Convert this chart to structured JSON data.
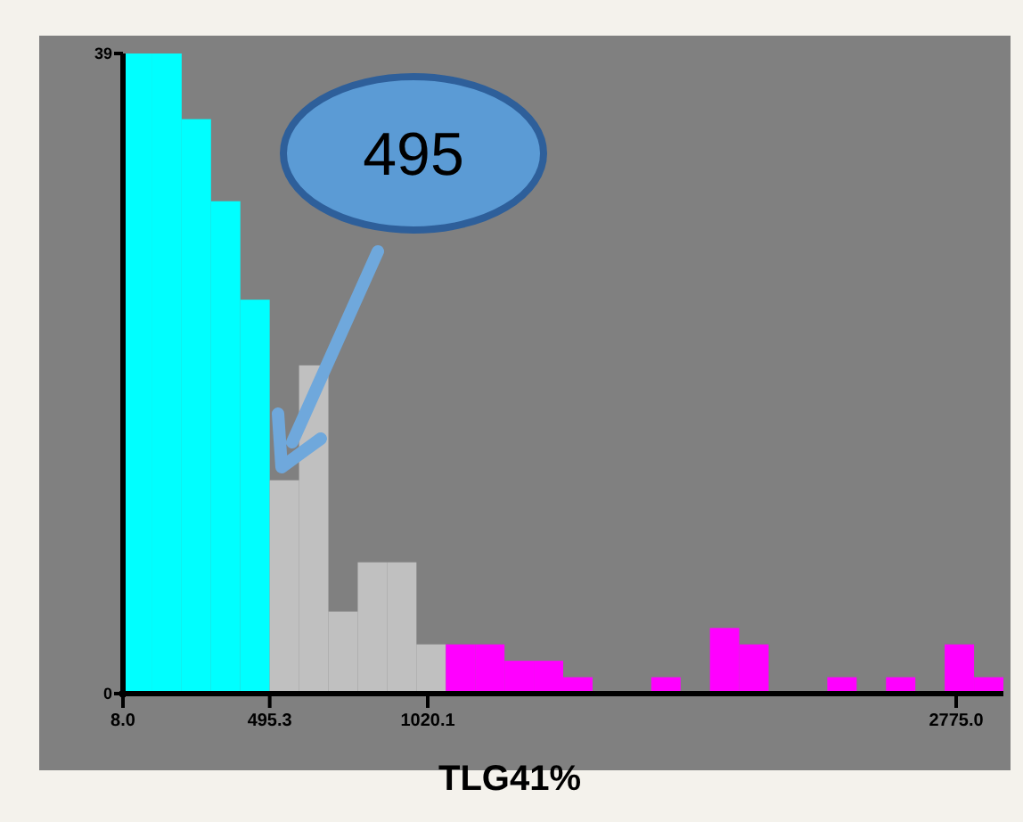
{
  "chart_data": {
    "type": "histogram",
    "xlabel": "TLG41%",
    "bins": [
      8.0,
      105.5,
      202.9,
      300.4,
      397.8,
      495.3,
      592.8,
      690.2,
      787.7,
      885.1,
      982.6,
      1080.1,
      1177.5,
      1275.0,
      1372.4,
      1469.9,
      1567.4,
      1664.8,
      1762.3,
      1859.7,
      1957.2,
      2054.7,
      2152.1,
      2249.6,
      2347.0,
      2444.5,
      2542.0,
      2639.4,
      2736.9,
      2834.3,
      2931.8
    ],
    "values": [
      39,
      39,
      35,
      30,
      24,
      13,
      20,
      5,
      8,
      8,
      3,
      3,
      3,
      2,
      2,
      1,
      0,
      0,
      1,
      0,
      4,
      3,
      0,
      0,
      1,
      0,
      1,
      0,
      3,
      1
    ],
    "colors": [
      "#00ffff",
      "#00ffff",
      "#00ffff",
      "#00ffff",
      "#00ffff",
      "#c0c0c0",
      "#c0c0c0",
      "#c0c0c0",
      "#c0c0c0",
      "#c0c0c0",
      "#c0c0c0",
      "#ff00ff",
      "#ff00ff",
      "#ff00ff",
      "#ff00ff",
      "#ff00ff",
      "#ff00ff",
      "#ff00ff",
      "#ff00ff",
      "#ff00ff",
      "#ff00ff",
      "#ff00ff",
      "#ff00ff",
      "#ff00ff",
      "#ff00ff",
      "#ff00ff",
      "#ff00ff",
      "#ff00ff",
      "#ff00ff",
      "#ff00ff"
    ],
    "xlim": [
      8.0,
      2931.8
    ],
    "xticks": [
      {
        "value": 8.0,
        "label": "8.0"
      },
      {
        "value": 495.3,
        "label": "495.3"
      },
      {
        "value": 1020.1,
        "label": "1020.1"
      },
      {
        "value": 2775.0,
        "label": "2775.0"
      }
    ],
    "ylim": [
      0,
      39
    ],
    "yticks": [
      0,
      39
    ],
    "grid": false,
    "annotations": [
      "495"
    ]
  }
}
